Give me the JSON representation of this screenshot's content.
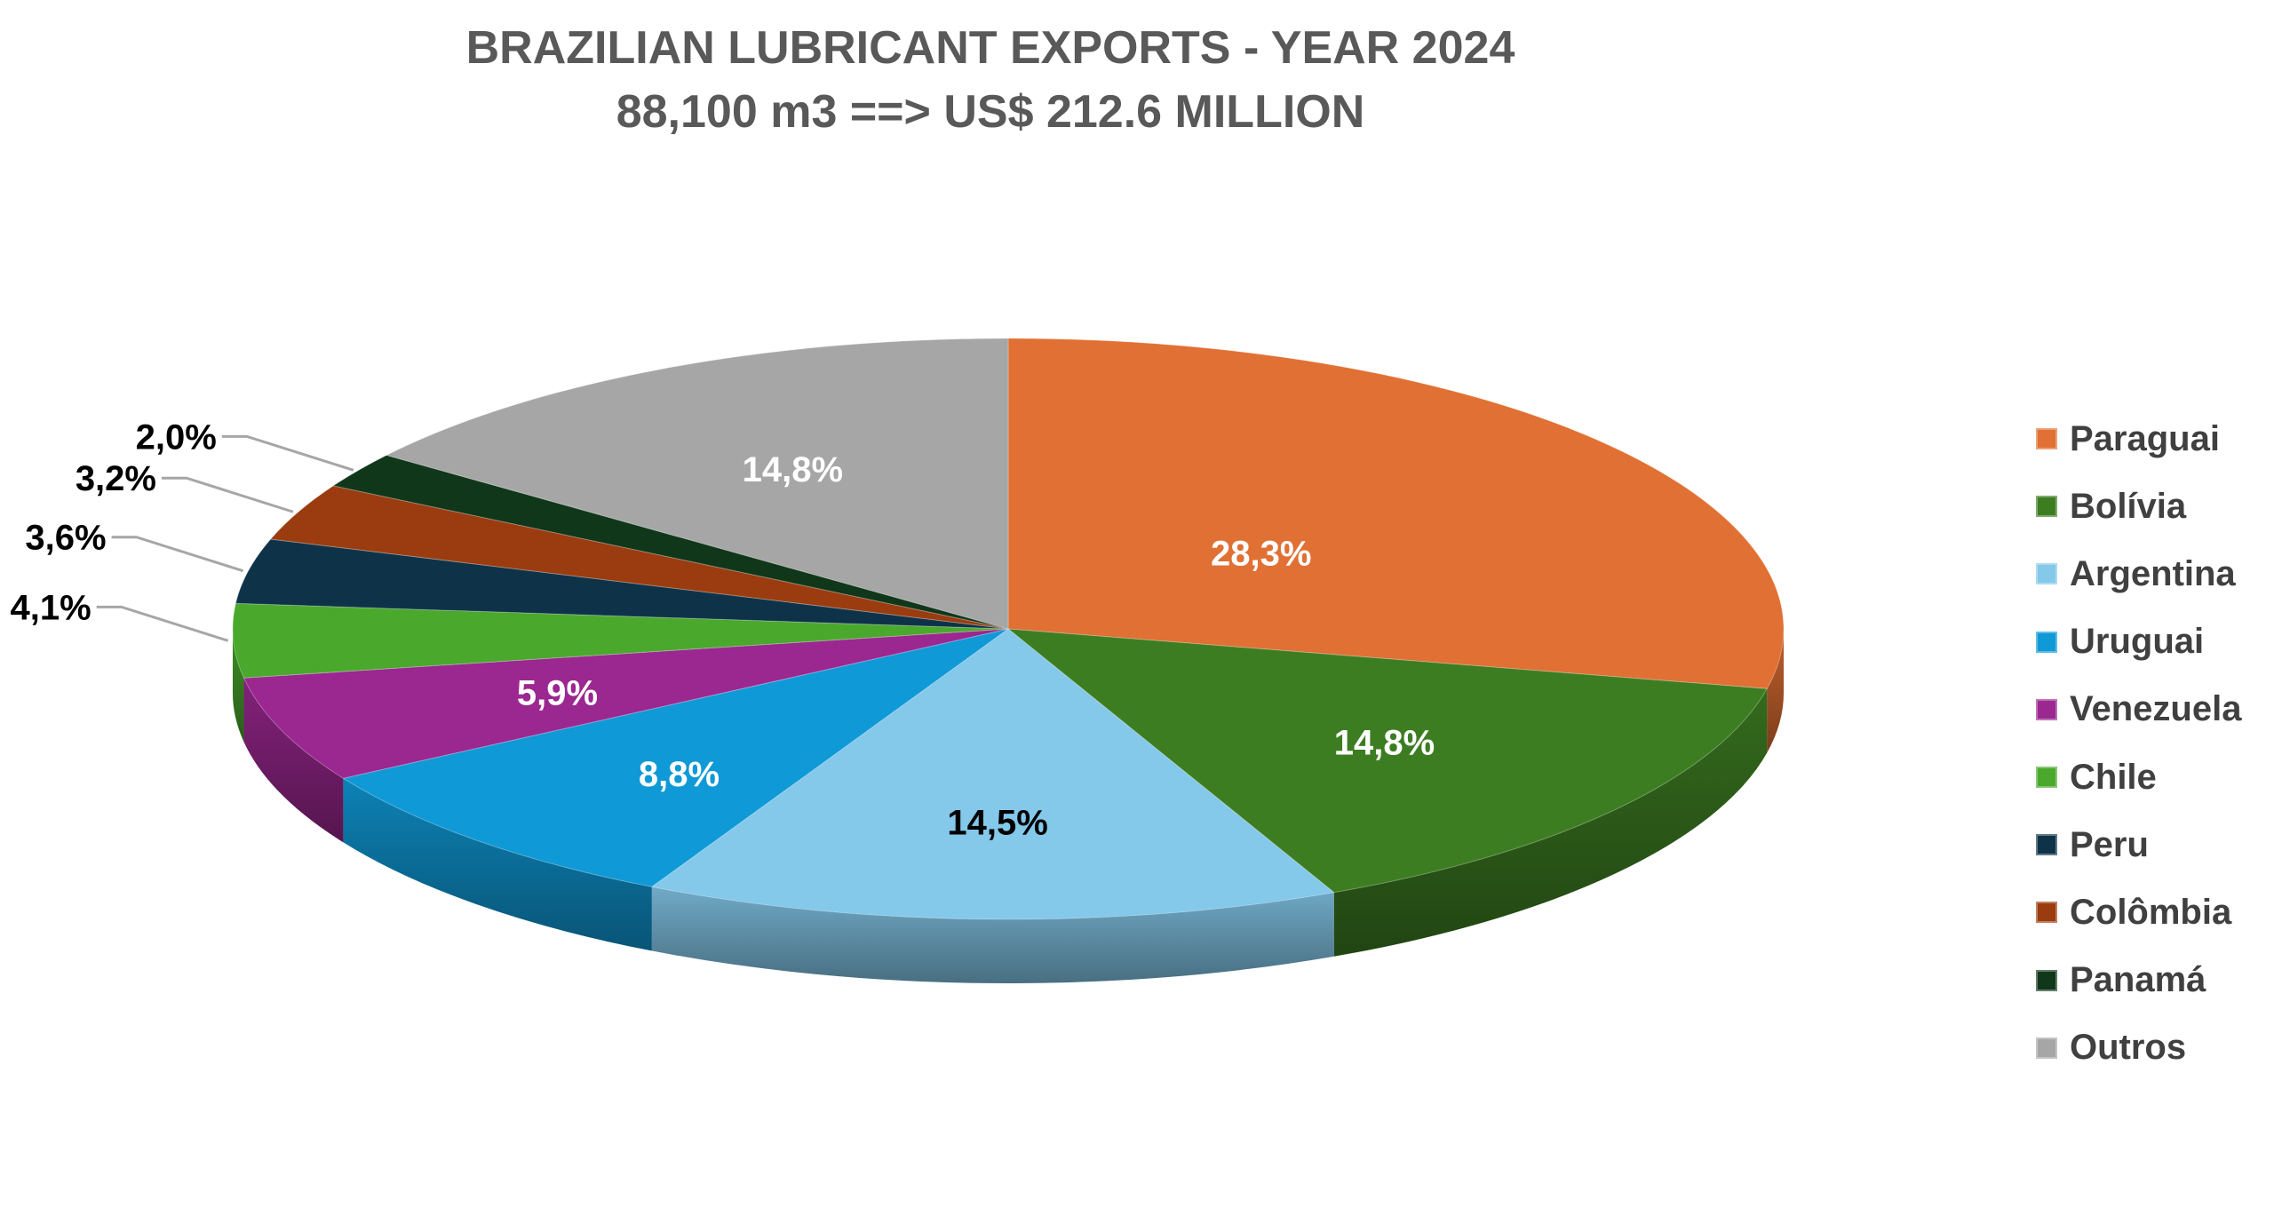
{
  "chart_data": {
    "type": "pie",
    "title": "BRAZILIAN LUBRICANT EXPORTS - YEAR 2024",
    "subtitle": "88,100 m3 ==> US$ 212.6 MILLION",
    "legend_position": "right",
    "slices": [
      {
        "name": "Paraguai",
        "value": 28.3,
        "label": "28,3%",
        "color": "#E07033",
        "label_color": "#ffffff"
      },
      {
        "name": "Bolívia",
        "value": 14.8,
        "label": "14,8%",
        "color": "#3D7D22",
        "label_color": "#ffffff"
      },
      {
        "name": "Argentina",
        "value": 14.5,
        "label": "14,5%",
        "color": "#84C8EA",
        "label_color": "#000000"
      },
      {
        "name": "Uruguai",
        "value": 8.8,
        "label": "8,8%",
        "color": "#0F99D6",
        "label_color": "#ffffff"
      },
      {
        "name": "Venezuela",
        "value": 5.9,
        "label": "5,9%",
        "color": "#9B2790",
        "label_color": "#ffffff"
      },
      {
        "name": "Chile",
        "value": 4.1,
        "label": "4,1%",
        "color": "#4AA82D",
        "label_color": "#000000"
      },
      {
        "name": "Peru",
        "value": 3.6,
        "label": "3,6%",
        "color": "#0E3349",
        "label_color": "#000000"
      },
      {
        "name": "Colômbia",
        "value": 3.2,
        "label": "3,2%",
        "color": "#9A3C10",
        "label_color": "#000000"
      },
      {
        "name": "Panamá",
        "value": 2.0,
        "label": "2,0%",
        "color": "#10371A",
        "label_color": "#000000"
      },
      {
        "name": "Outros",
        "value": 14.8,
        "label": "14,8%",
        "color": "#A6A6A6",
        "label_color": "#ffffff"
      }
    ]
  }
}
